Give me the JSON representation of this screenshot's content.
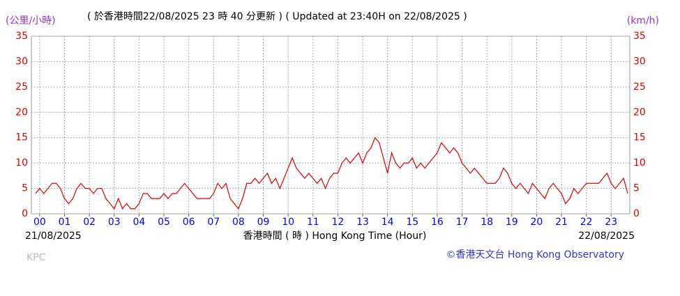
{
  "chart_data": {
    "type": "line",
    "title": "( 於香港時間22/08/2025 23 時 40 分更新 ) ( Updated at 23:40H on 22/08/2025 )",
    "y_label": "(公里/小時)",
    "y2_label": "(km/h)",
    "x_label": "香港時間 ( 時 ) Hong Kong Time (Hour)",
    "start_date": "21/08/2025",
    "end_date": "22/08/2025",
    "station": "KPC",
    "credit": "©香港天文台 Hong Kong Observatory",
    "x": [
      -10,
      0,
      10,
      20,
      30,
      40,
      50,
      60,
      70,
      80,
      90,
      100,
      110,
      120,
      130,
      140,
      150,
      160,
      170,
      180,
      190,
      200,
      210,
      220,
      230,
      240,
      250,
      260,
      270,
      280,
      290,
      300,
      310,
      320,
      330,
      340,
      350,
      360,
      370,
      380,
      390,
      400,
      410,
      420,
      430,
      440,
      450,
      460,
      470,
      480,
      490,
      500,
      510,
      520,
      530,
      540,
      550,
      560,
      570,
      580,
      590,
      600,
      610,
      620,
      630,
      640,
      650,
      660,
      670,
      680,
      690,
      700,
      710,
      720,
      730,
      740,
      750,
      760,
      770,
      780,
      790,
      800,
      810,
      820,
      830,
      840,
      850,
      860,
      870,
      880,
      890,
      900,
      910,
      920,
      930,
      940,
      950,
      960,
      970,
      980,
      990,
      1000,
      1010,
      1020,
      1030,
      1040,
      1050,
      1060,
      1070,
      1080,
      1090,
      1100,
      1110,
      1120,
      1130,
      1140,
      1150,
      1160,
      1170,
      1180,
      1190,
      1200,
      1210,
      1220,
      1230,
      1240,
      1250,
      1260,
      1270,
      1280,
      1290,
      1300,
      1310,
      1320,
      1330,
      1340,
      1350,
      1360,
      1370,
      1380,
      1390,
      1400,
      1410,
      1420
    ],
    "series": [
      {
        "color": "#dd0000",
        "values": [
          4,
          5,
          4,
          5,
          6,
          6,
          5,
          3,
          2,
          3,
          5,
          6,
          5,
          5,
          4,
          5,
          5,
          3,
          2,
          1,
          3,
          1,
          2,
          1,
          1,
          2,
          4,
          4,
          3,
          3,
          3,
          4,
          3,
          4,
          4,
          5,
          6,
          5,
          4,
          3,
          3,
          3,
          3,
          4,
          6,
          5,
          6,
          3,
          2,
          1,
          3,
          6,
          6,
          7,
          6,
          7,
          8,
          6,
          7,
          5,
          7,
          9,
          11,
          9,
          8,
          7,
          8,
          7,
          6,
          7,
          5,
          7,
          8,
          8,
          10,
          11,
          10,
          11,
          12,
          10,
          12,
          13,
          15,
          14,
          11,
          8,
          12,
          10,
          9,
          10,
          10,
          11,
          9,
          10,
          9,
          10,
          11,
          12,
          14,
          13,
          12,
          13,
          12,
          10,
          9,
          8,
          9,
          8,
          7,
          6,
          6,
          6,
          7,
          9,
          8,
          6,
          5,
          6,
          5,
          4,
          6,
          5,
          4,
          3,
          5,
          6,
          5,
          4,
          2,
          3,
          5,
          4,
          5,
          6,
          6,
          6,
          6,
          7,
          8,
          6,
          5,
          6,
          7,
          4
        ]
      }
    ],
    "xlim": [
      -20,
      1425
    ],
    "ylim": [
      0,
      35
    ],
    "xticks": [
      {
        "value": 0,
        "label": "00"
      },
      {
        "value": 60,
        "label": "01"
      },
      {
        "value": 120,
        "label": "02"
      },
      {
        "value": 180,
        "label": "03"
      },
      {
        "value": 240,
        "label": "04"
      },
      {
        "value": 300,
        "label": "05"
      },
      {
        "value": 360,
        "label": "06"
      },
      {
        "value": 420,
        "label": "07"
      },
      {
        "value": 480,
        "label": "08"
      },
      {
        "value": 540,
        "label": "09"
      },
      {
        "value": 600,
        "label": "10"
      },
      {
        "value": 660,
        "label": "11"
      },
      {
        "value": 720,
        "label": "12"
      },
      {
        "value": 780,
        "label": "13"
      },
      {
        "value": 840,
        "label": "14"
      },
      {
        "value": 900,
        "label": "15"
      },
      {
        "value": 960,
        "label": "16"
      },
      {
        "value": 1020,
        "label": "17"
      },
      {
        "value": 1080,
        "label": "18"
      },
      {
        "value": 1140,
        "label": "19"
      },
      {
        "value": 1200,
        "label": "20"
      },
      {
        "value": 1260,
        "label": "21"
      },
      {
        "value": 1320,
        "label": "22"
      },
      {
        "value": 1380,
        "label": "23"
      }
    ],
    "yticks": [
      0,
      5,
      10,
      15,
      20,
      25,
      30,
      35
    ],
    "grid": true
  }
}
